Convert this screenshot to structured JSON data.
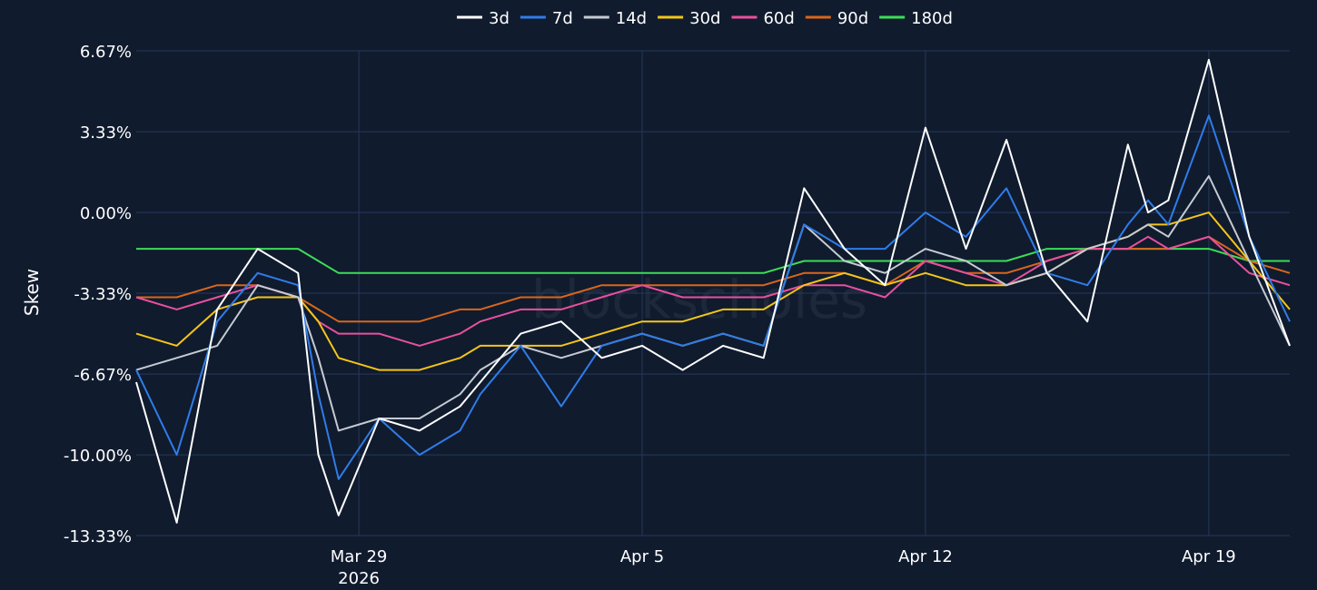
{
  "chart_data": {
    "type": "line",
    "ylabel": "Skew",
    "watermark": "blockscholes",
    "legend_position": "top-center",
    "ylim": [
      -13.33,
      6.67
    ],
    "y_ticks": [
      {
        "value": 6.67,
        "label": "6.67%"
      },
      {
        "value": 3.33,
        "label": "3.33%"
      },
      {
        "value": 0.0,
        "label": "0.00%"
      },
      {
        "value": -3.33,
        "label": "-3.33%"
      },
      {
        "value": -6.67,
        "label": "-6.67%"
      },
      {
        "value": -10.0,
        "label": "-10.00%"
      },
      {
        "value": -13.33,
        "label": "-13.33%"
      }
    ],
    "x_range": [
      "2026-03-23T12:00",
      "2026-04-21T00:00"
    ],
    "x_ticks": [
      {
        "value": "2026-03-29",
        "label": "Mar 29",
        "sublabel": "2026"
      },
      {
        "value": "2026-04-05",
        "label": "Apr 5",
        "sublabel": ""
      },
      {
        "value": "2026-04-12",
        "label": "Apr 12",
        "sublabel": ""
      },
      {
        "value": "2026-04-19",
        "label": "Apr 19",
        "sublabel": ""
      }
    ],
    "grid": true,
    "x": [
      "2026-03-23T12:00",
      "2026-03-24T12:00",
      "2026-03-25T12:00",
      "2026-03-26T12:00",
      "2026-03-27T12:00",
      "2026-03-28T00:00",
      "2026-03-28T12:00",
      "2026-03-29T12:00",
      "2026-03-30T12:00",
      "2026-03-31T12:00",
      "2026-04-01T00:00",
      "2026-04-02T00:00",
      "2026-04-03T00:00",
      "2026-04-04T00:00",
      "2026-04-05T00:00",
      "2026-04-06T00:00",
      "2026-04-07T00:00",
      "2026-04-08T00:00",
      "2026-04-09T00:00",
      "2026-04-10T00:00",
      "2026-04-11T00:00",
      "2026-04-12T00:00",
      "2026-04-13T00:00",
      "2026-04-14T00:00",
      "2026-04-15T00:00",
      "2026-04-16T00:00",
      "2026-04-17T00:00",
      "2026-04-17T12:00",
      "2026-04-18T00:00",
      "2026-04-19T00:00",
      "2026-04-20T00:00",
      "2026-04-21T00:00"
    ],
    "series": [
      {
        "name": "3d",
        "color": "#ffffff",
        "values": [
          -7.0,
          -12.8,
          -4.0,
          -1.5,
          -2.5,
          -10.0,
          -12.5,
          -8.5,
          -9.0,
          -8.0,
          -7.0,
          -5.0,
          -4.5,
          -6.0,
          -5.5,
          -6.5,
          -5.5,
          -6.0,
          1.0,
          -1.5,
          -3.0,
          3.5,
          -1.5,
          3.0,
          -2.5,
          -4.5,
          2.8,
          0.0,
          0.5,
          6.3,
          -1.0,
          -5.5
        ]
      },
      {
        "name": "7d",
        "color": "#2f7ce8",
        "values": [
          -6.5,
          -10.0,
          -4.5,
          -2.5,
          -3.0,
          -7.5,
          -11.0,
          -8.5,
          -10.0,
          -9.0,
          -7.5,
          -5.5,
          -8.0,
          -5.5,
          -5.0,
          -5.5,
          -5.0,
          -5.5,
          -0.5,
          -1.5,
          -1.5,
          0.0,
          -1.0,
          1.0,
          -2.5,
          -3.0,
          -0.5,
          0.5,
          -0.5,
          4.0,
          -1.0,
          -4.5
        ]
      },
      {
        "name": "14d",
        "color": "#c5cbd3",
        "values": [
          -6.5,
          -6.0,
          -5.5,
          -3.0,
          -3.5,
          -6.0,
          -9.0,
          -8.5,
          -8.5,
          -7.5,
          -6.5,
          -5.5,
          -6.0,
          -5.5,
          -5.0,
          -5.5,
          -5.0,
          -5.5,
          -0.5,
          -2.0,
          -2.5,
          -1.5,
          -2.0,
          -3.0,
          -2.5,
          -1.5,
          -1.0,
          -0.5,
          -1.0,
          1.5,
          -2.0,
          -5.5
        ]
      },
      {
        "name": "30d",
        "color": "#f5c518",
        "values": [
          -5.0,
          -5.5,
          -4.0,
          -3.5,
          -3.5,
          -4.5,
          -6.0,
          -6.5,
          -6.5,
          -6.0,
          -5.5,
          -5.5,
          -5.5,
          -5.0,
          -4.5,
          -4.5,
          -4.0,
          -4.0,
          -3.0,
          -2.5,
          -3.0,
          -2.5,
          -3.0,
          -3.0,
          -2.5,
          -1.5,
          -1.0,
          -0.5,
          -0.5,
          0.0,
          -2.0,
          -4.0
        ]
      },
      {
        "name": "60d",
        "color": "#e8509e",
        "values": [
          -3.5,
          -4.0,
          -3.5,
          -3.0,
          -3.5,
          -4.5,
          -5.0,
          -5.0,
          -5.5,
          -5.0,
          -4.5,
          -4.0,
          -4.0,
          -3.5,
          -3.0,
          -3.5,
          -3.5,
          -3.5,
          -3.0,
          -3.0,
          -3.5,
          -2.0,
          -2.5,
          -3.0,
          -2.0,
          -1.5,
          -1.5,
          -1.0,
          -1.5,
          -1.0,
          -2.5,
          -3.0
        ]
      },
      {
        "name": "90d",
        "color": "#d9661b",
        "values": [
          -3.5,
          -3.5,
          -3.0,
          -3.0,
          -3.5,
          -4.0,
          -4.5,
          -4.5,
          -4.5,
          -4.0,
          -4.0,
          -3.5,
          -3.5,
          -3.0,
          -3.0,
          -3.0,
          -3.0,
          -3.0,
          -2.5,
          -2.5,
          -3.0,
          -2.0,
          -2.5,
          -2.5,
          -2.0,
          -1.5,
          -1.5,
          -1.5,
          -1.5,
          -1.0,
          -2.0,
          -2.5
        ]
      },
      {
        "name": "180d",
        "color": "#3ddc56",
        "values": [
          -1.5,
          -1.5,
          -1.5,
          -1.5,
          -1.5,
          -2.0,
          -2.5,
          -2.5,
          -2.5,
          -2.5,
          -2.5,
          -2.5,
          -2.5,
          -2.5,
          -2.5,
          -2.5,
          -2.5,
          -2.5,
          -2.0,
          -2.0,
          -2.0,
          -2.0,
          -2.0,
          -2.0,
          -1.5,
          -1.5,
          -1.5,
          -1.5,
          -1.5,
          -1.5,
          -2.0,
          -2.0
        ]
      }
    ]
  }
}
